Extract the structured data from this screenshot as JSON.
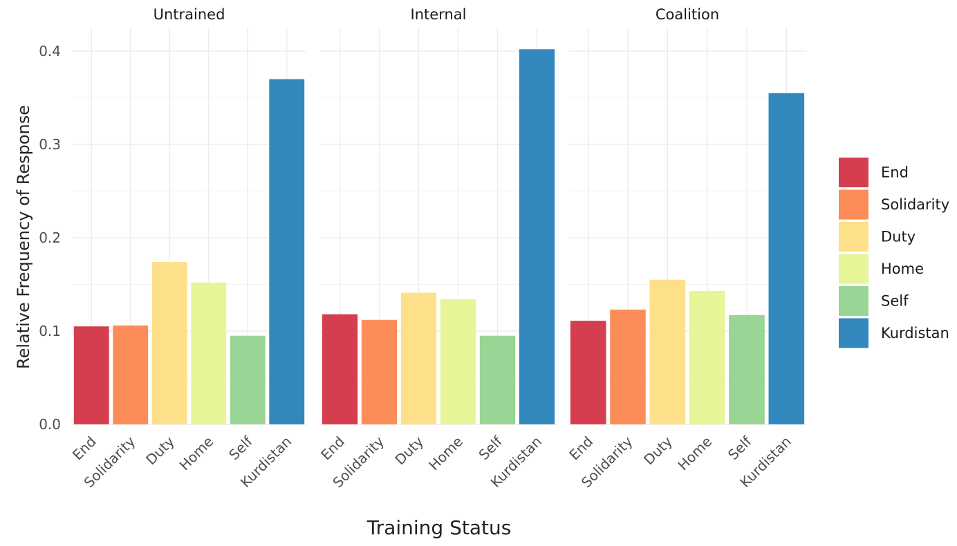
{
  "chart_data": {
    "type": "bar",
    "xlabel": "Training Status",
    "ylabel": "Relative Frequency of Response",
    "ylim": [
      0,
      0.4
    ],
    "yticks": [
      "0.0",
      "0.1",
      "0.2",
      "0.3",
      "0.4"
    ],
    "ytick_values": [
      0,
      0.1,
      0.2,
      0.3,
      0.4
    ],
    "categories": [
      "End",
      "Solidarity",
      "Duty",
      "Home",
      "Self",
      "Kurdistan"
    ],
    "colors": {
      "End": "#d53e4f",
      "Solidarity": "#fc8d59",
      "Duty": "#fee08b",
      "Home": "#e6f598",
      "Self": "#99d594",
      "Kurdistan": "#3288bd"
    },
    "legend": {
      "placement": "right",
      "entries": [
        "End",
        "Solidarity",
        "Duty",
        "Home",
        "Self",
        "Kurdistan"
      ]
    },
    "grid": true,
    "facets": [
      {
        "title": "Untrained",
        "values": [
          0.105,
          0.106,
          0.174,
          0.152,
          0.095,
          0.37
        ]
      },
      {
        "title": "Internal",
        "values": [
          0.118,
          0.112,
          0.141,
          0.134,
          0.095,
          0.402
        ]
      },
      {
        "title": "Coalition",
        "values": [
          0.111,
          0.123,
          0.155,
          0.143,
          0.117,
          0.355
        ]
      }
    ]
  }
}
